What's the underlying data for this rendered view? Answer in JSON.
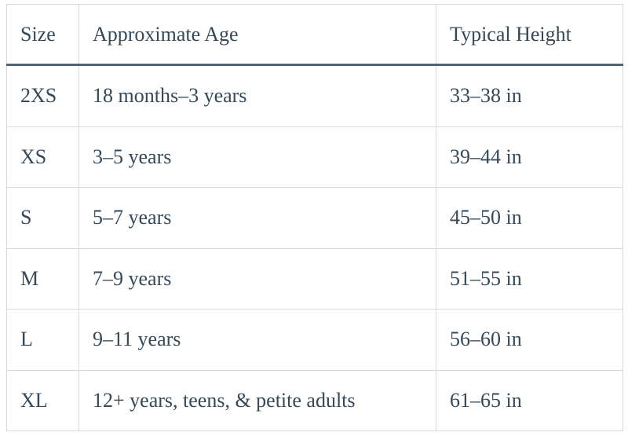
{
  "table": {
    "columns": [
      "Size",
      "Approximate Age",
      "Typical Height"
    ],
    "rows": [
      [
        "2XS",
        "18 months–3 years",
        "33–38 in"
      ],
      [
        "XS",
        "3–5 years",
        "39–44 in"
      ],
      [
        "S",
        "5–7 years",
        "45–50 in"
      ],
      [
        "M",
        "7–9 years",
        "51–55 in"
      ],
      [
        "L",
        "9–11 years",
        "56–60 in"
      ],
      [
        "XL",
        "12+ years, teens, & petite adults",
        "61–65 in"
      ]
    ]
  }
}
